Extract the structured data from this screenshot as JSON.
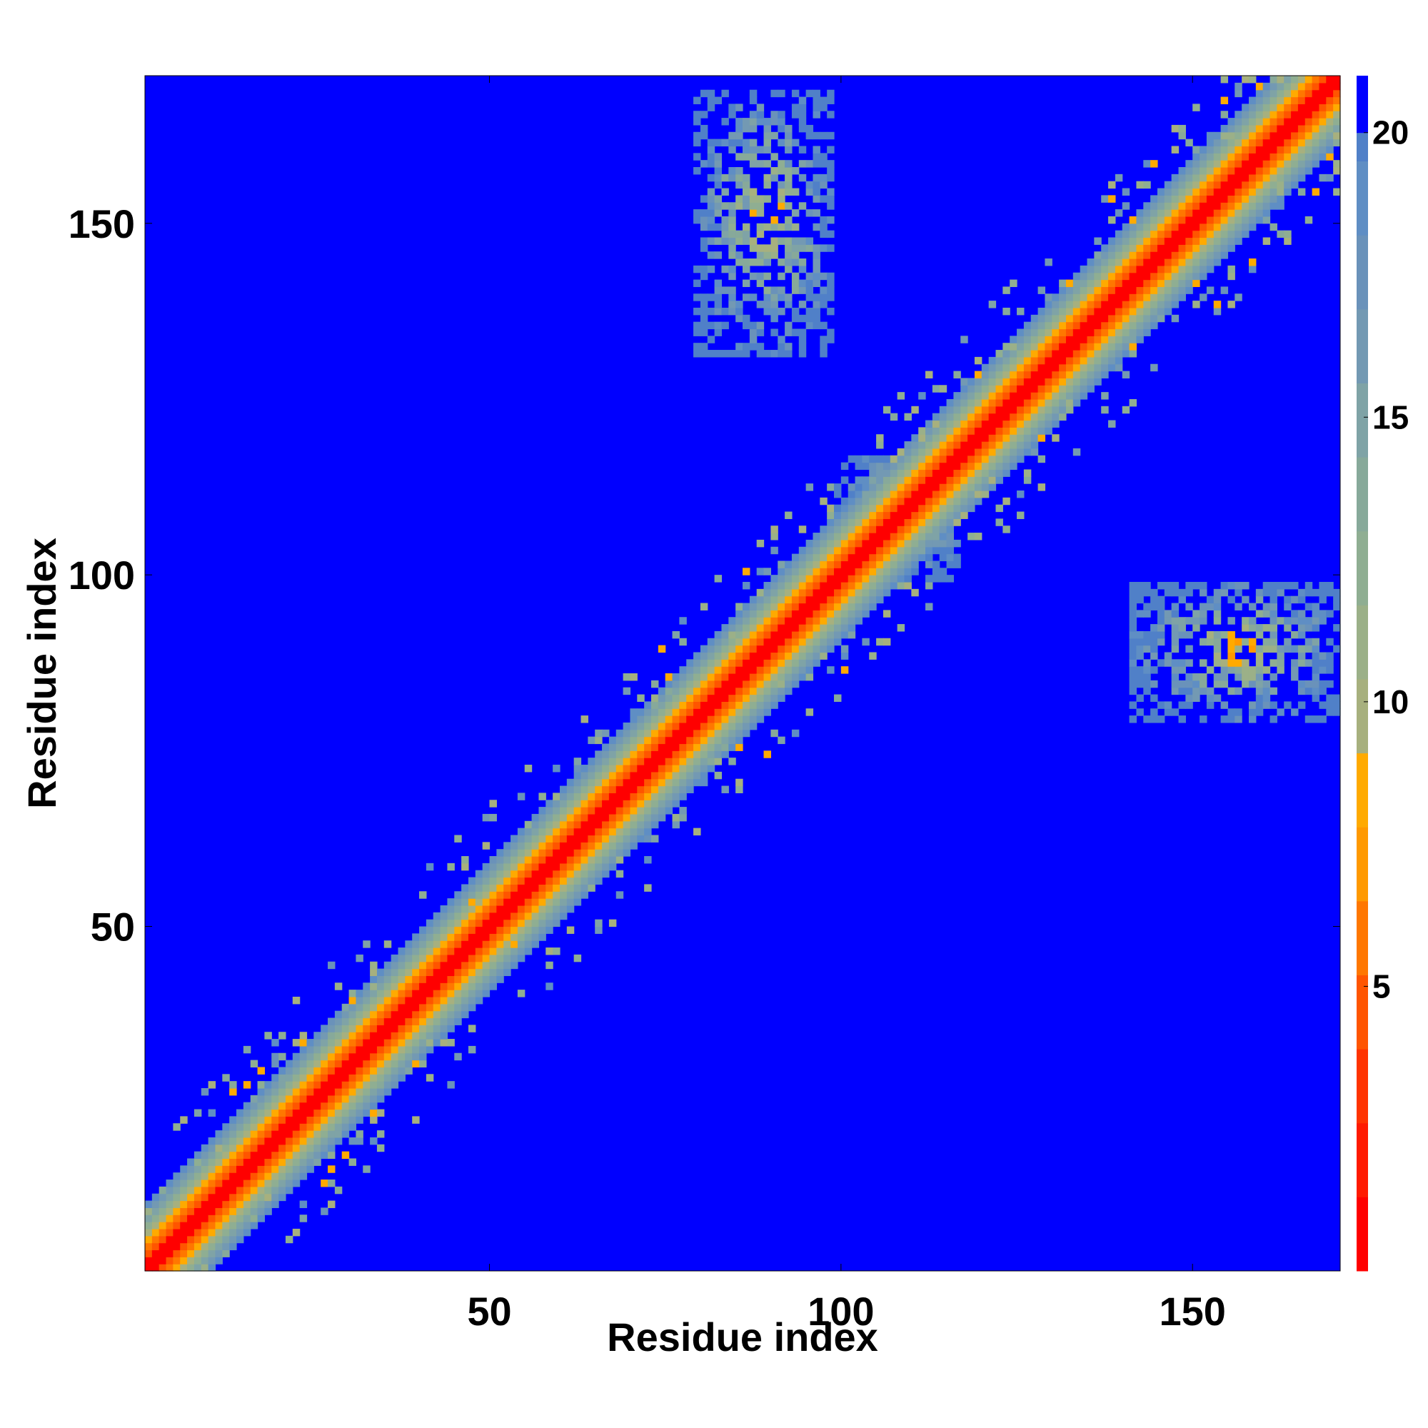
{
  "chart_data": {
    "type": "heatmap",
    "title": "",
    "xlabel": "Residue index",
    "ylabel": "Residue index",
    "n_residues": 170,
    "xlim": [
      1,
      171
    ],
    "ylim": [
      1,
      171
    ],
    "x_ticks": [
      {
        "value": 50,
        "label": "50"
      },
      {
        "value": 100,
        "label": "100"
      },
      {
        "value": 150,
        "label": "150"
      }
    ],
    "y_ticks": [
      {
        "value": 50,
        "label": "50"
      },
      {
        "value": 100,
        "label": "100"
      },
      {
        "value": 150,
        "label": "150"
      }
    ],
    "colorbar": {
      "range": [
        0,
        21
      ],
      "ticks": [
        {
          "value": 5,
          "label": "5"
        },
        {
          "value": 10,
          "label": "10"
        },
        {
          "value": 15,
          "label": "15"
        },
        {
          "value": 20,
          "label": "20"
        }
      ],
      "levels": [
        {
          "to": 1.3,
          "color": "#ff0000"
        },
        {
          "to": 2.6,
          "color": "#ff1a00"
        },
        {
          "to": 3.9,
          "color": "#ff3300"
        },
        {
          "to": 5.2,
          "color": "#ff5500"
        },
        {
          "to": 6.5,
          "color": "#ff7700"
        },
        {
          "to": 7.8,
          "color": "#ff9900"
        },
        {
          "to": 9.1,
          "color": "#ffaa00"
        },
        {
          "to": 10.4,
          "color": "#a7b07e"
        },
        {
          "to": 11.7,
          "color": "#9bb088"
        },
        {
          "to": 13.0,
          "color": "#8fae92"
        },
        {
          "to": 14.3,
          "color": "#87a99a"
        },
        {
          "to": 15.6,
          "color": "#7fa3a6"
        },
        {
          "to": 16.9,
          "color": "#7399b3"
        },
        {
          "to": 18.2,
          "color": "#6a92ba"
        },
        {
          "to": 19.5,
          "color": "#5f8ec4"
        },
        {
          "to": 20.0,
          "color": "#5080c8"
        },
        {
          "to": 21.0,
          "color": "#0000ff"
        }
      ]
    },
    "background_value": 21,
    "diagonal_band": {
      "contact_halfwidth": 3,
      "close_halfwidth": 6,
      "far_halfwidth": 9
    },
    "off_diagonal_clusters": [
      {
        "i_range": [
          78,
          98
        ],
        "j_range": [
          130,
          168
        ],
        "description_value_min": 6,
        "description_value_max": 19
      },
      {
        "i_range": [
          140,
          170
        ],
        "j_range": [
          78,
          98
        ],
        "description_value_min": 6,
        "description_value_max": 19
      },
      {
        "i_range": [
          98,
          116
        ],
        "j_range": [
          98,
          116
        ],
        "description_value_min": 6,
        "description_value_max": 19
      }
    ]
  }
}
